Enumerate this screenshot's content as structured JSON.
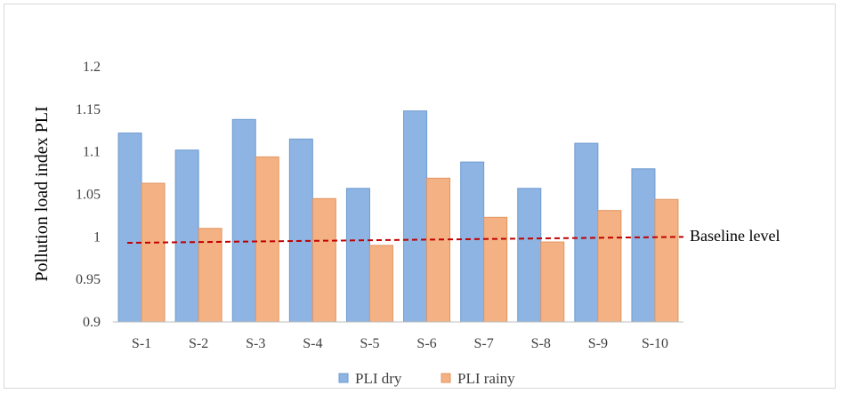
{
  "chart_data": {
    "type": "bar",
    "ylabel": "Pollution load index  PLI",
    "ylim": [
      0.9,
      1.2
    ],
    "yticks": [
      "0.9",
      "0.95",
      "1",
      "1.05",
      "1.1",
      "1.15",
      "1.2"
    ],
    "grid": false,
    "legend_position": "bottom",
    "categories": [
      "S-1",
      "S-2",
      "S-3",
      "S-4",
      "S-5",
      "S-6",
      "S-7",
      "S-8",
      "S-9",
      "S-10"
    ],
    "series": [
      {
        "name": "PLI dry",
        "color": "#8db4e2",
        "edge": "#6d9bd1",
        "values": [
          1.122,
          1.102,
          1.138,
          1.115,
          1.057,
          1.148,
          1.088,
          1.057,
          1.11,
          1.08
        ]
      },
      {
        "name": "PLI rainy",
        "color": "#f4b183",
        "edge": "#e29562",
        "values": [
          1.063,
          1.01,
          1.094,
          1.045,
          0.99,
          1.069,
          1.023,
          0.994,
          1.031,
          1.044
        ]
      }
    ],
    "baseline": {
      "label": "Baseline level",
      "start": 0.993,
      "end": 1.0,
      "color": "#c00000"
    }
  }
}
